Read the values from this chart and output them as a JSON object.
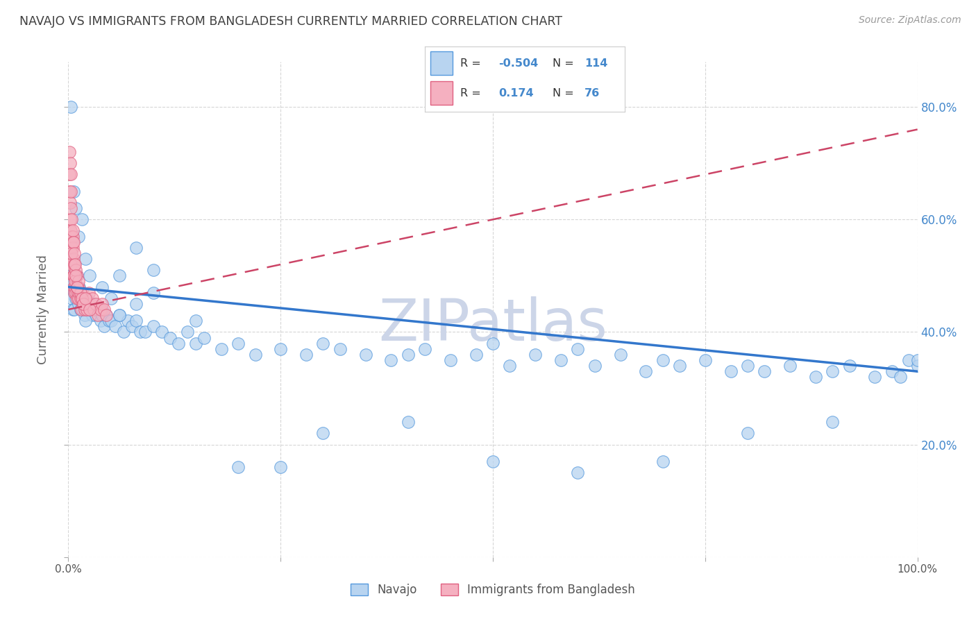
{
  "title": "NAVAJO VS IMMIGRANTS FROM BANGLADESH CURRENTLY MARRIED CORRELATION CHART",
  "source": "Source: ZipAtlas.com",
  "ylabel": "Currently Married",
  "legend_label1": "Navajo",
  "legend_label2": "Immigrants from Bangladesh",
  "R1": -0.504,
  "N1": 114,
  "R2": 0.174,
  "N2": 76,
  "color_navajo_fill": "#b8d4f0",
  "color_navajo_edge": "#5599dd",
  "color_bangladesh_fill": "#f5b0c0",
  "color_bangladesh_edge": "#e06080",
  "color_navajo_line": "#3377cc",
  "color_bangladesh_line": "#cc4466",
  "watermark": "ZIPatlas",
  "watermark_color": "#ccd5e8",
  "bg_color": "#ffffff",
  "grid_color": "#cccccc",
  "title_color": "#404040",
  "right_axis_color": "#4488cc",
  "ylim": [
    0.0,
    0.88
  ],
  "xlim": [
    0.0,
    1.0
  ],
  "yticks": [
    0.0,
    0.2,
    0.4,
    0.6,
    0.8
  ],
  "navajo_x": [
    0.002,
    0.003,
    0.004,
    0.005,
    0.005,
    0.006,
    0.007,
    0.007,
    0.008,
    0.009,
    0.01,
    0.01,
    0.011,
    0.012,
    0.013,
    0.014,
    0.015,
    0.016,
    0.017,
    0.018,
    0.019,
    0.02,
    0.022,
    0.024,
    0.026,
    0.028,
    0.03,
    0.032,
    0.035,
    0.038,
    0.04,
    0.042,
    0.045,
    0.048,
    0.05,
    0.055,
    0.06,
    0.065,
    0.07,
    0.075,
    0.08,
    0.085,
    0.09,
    0.1,
    0.11,
    0.12,
    0.13,
    0.14,
    0.15,
    0.16,
    0.18,
    0.2,
    0.22,
    0.25,
    0.28,
    0.3,
    0.32,
    0.35,
    0.38,
    0.4,
    0.42,
    0.45,
    0.48,
    0.5,
    0.52,
    0.55,
    0.58,
    0.6,
    0.62,
    0.65,
    0.68,
    0.7,
    0.72,
    0.75,
    0.78,
    0.8,
    0.82,
    0.85,
    0.88,
    0.9,
    0.92,
    0.95,
    0.97,
    0.98,
    0.99,
    1.0,
    0.003,
    0.006,
    0.009,
    0.012,
    0.016,
    0.02,
    0.025,
    0.03,
    0.04,
    0.05,
    0.06,
    0.08,
    0.1,
    0.15,
    0.2,
    0.25,
    0.3,
    0.4,
    0.5,
    0.6,
    0.7,
    0.8,
    0.9,
    1.0,
    0.08,
    0.1,
    0.02,
    0.04,
    0.06
  ],
  "navajo_y": [
    0.48,
    0.5,
    0.46,
    0.49,
    0.44,
    0.5,
    0.47,
    0.44,
    0.48,
    0.46,
    0.5,
    0.47,
    0.46,
    0.45,
    0.48,
    0.44,
    0.47,
    0.46,
    0.44,
    0.45,
    0.43,
    0.44,
    0.46,
    0.45,
    0.44,
    0.43,
    0.44,
    0.43,
    0.44,
    0.42,
    0.43,
    0.41,
    0.43,
    0.42,
    0.42,
    0.41,
    0.43,
    0.4,
    0.42,
    0.41,
    0.42,
    0.4,
    0.4,
    0.41,
    0.4,
    0.39,
    0.38,
    0.4,
    0.38,
    0.39,
    0.37,
    0.38,
    0.36,
    0.37,
    0.36,
    0.38,
    0.37,
    0.36,
    0.35,
    0.36,
    0.37,
    0.35,
    0.36,
    0.38,
    0.34,
    0.36,
    0.35,
    0.37,
    0.34,
    0.36,
    0.33,
    0.35,
    0.34,
    0.35,
    0.33,
    0.34,
    0.33,
    0.34,
    0.32,
    0.33,
    0.34,
    0.32,
    0.33,
    0.32,
    0.35,
    0.34,
    0.8,
    0.65,
    0.62,
    0.57,
    0.6,
    0.53,
    0.5,
    0.45,
    0.44,
    0.46,
    0.5,
    0.45,
    0.47,
    0.42,
    0.16,
    0.16,
    0.22,
    0.24,
    0.17,
    0.15,
    0.17,
    0.22,
    0.24,
    0.35,
    0.55,
    0.51,
    0.42,
    0.48,
    0.43
  ],
  "bangladesh_x": [
    0.001,
    0.001,
    0.002,
    0.002,
    0.002,
    0.003,
    0.003,
    0.003,
    0.003,
    0.004,
    0.004,
    0.004,
    0.005,
    0.005,
    0.005,
    0.005,
    0.006,
    0.006,
    0.006,
    0.007,
    0.007,
    0.007,
    0.008,
    0.008,
    0.009,
    0.009,
    0.01,
    0.01,
    0.01,
    0.011,
    0.012,
    0.012,
    0.013,
    0.014,
    0.015,
    0.015,
    0.016,
    0.017,
    0.018,
    0.019,
    0.02,
    0.022,
    0.024,
    0.026,
    0.028,
    0.03,
    0.032,
    0.035,
    0.038,
    0.04,
    0.042,
    0.045,
    0.003,
    0.004,
    0.005,
    0.006,
    0.007,
    0.008,
    0.009,
    0.01,
    0.012,
    0.014,
    0.016,
    0.018,
    0.02,
    0.025,
    0.001,
    0.002,
    0.003,
    0.004,
    0.005,
    0.006,
    0.007,
    0.008,
    0.009,
    0.01
  ],
  "bangladesh_y": [
    0.68,
    0.65,
    0.63,
    0.6,
    0.58,
    0.65,
    0.62,
    0.58,
    0.55,
    0.57,
    0.55,
    0.53,
    0.57,
    0.55,
    0.52,
    0.5,
    0.53,
    0.5,
    0.48,
    0.52,
    0.5,
    0.47,
    0.5,
    0.48,
    0.5,
    0.47,
    0.5,
    0.48,
    0.46,
    0.47,
    0.48,
    0.46,
    0.47,
    0.46,
    0.47,
    0.44,
    0.46,
    0.47,
    0.45,
    0.44,
    0.46,
    0.44,
    0.47,
    0.45,
    0.46,
    0.44,
    0.45,
    0.43,
    0.44,
    0.45,
    0.44,
    0.43,
    0.52,
    0.54,
    0.56,
    0.5,
    0.52,
    0.49,
    0.51,
    0.48,
    0.49,
    0.47,
    0.46,
    0.45,
    0.46,
    0.44,
    0.72,
    0.7,
    0.68,
    0.6,
    0.58,
    0.56,
    0.54,
    0.52,
    0.5,
    0.48
  ],
  "navajo_trend": [
    0.48,
    0.33
  ],
  "bangladesh_trend_start_x": 0.0,
  "bangladesh_trend_start_y": 0.44,
  "bangladesh_trend_end_x": 1.0,
  "bangladesh_trend_end_y": 0.76
}
